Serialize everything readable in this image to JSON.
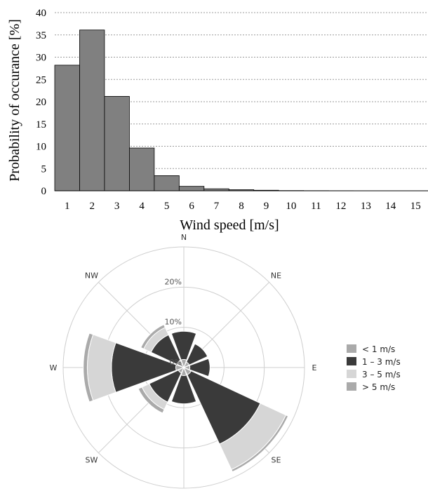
{
  "chart_data": [
    {
      "type": "bar",
      "title": "",
      "xlabel": "Wind speed [m/s]",
      "ylabel": "Probability of occurance [%]",
      "ylim": [
        0,
        40
      ],
      "yticks": [
        "0",
        "5",
        "10",
        "15",
        "20",
        "25",
        "30",
        "35",
        "40"
      ],
      "categories": [
        "1",
        "2",
        "3",
        "4",
        "5",
        "6",
        "7",
        "8",
        "9",
        "10",
        "11",
        "12",
        "13",
        "14",
        "15"
      ],
      "values": [
        28.2,
        36.1,
        21.2,
        9.6,
        3.4,
        1.0,
        0.45,
        0.25,
        0.12,
        0.05,
        0.03,
        0.02,
        0.01,
        0.01,
        0.0
      ],
      "grid": "horizontal dashed",
      "colors": {
        "bar": "#808080",
        "edge": "#000000"
      }
    },
    {
      "type": "wind-rose",
      "directions": [
        "N",
        "NE",
        "E",
        "SE",
        "S",
        "SW",
        "W",
        "NW"
      ],
      "radial_ticks": [
        "0%",
        "10%",
        "20%"
      ],
      "rlim": [
        0,
        30
      ],
      "legend_position": "right",
      "series": [
        {
          "name": "< 1 m/s",
          "color": "#aaaaaa",
          "values": [
            2,
            1.5,
            1.5,
            2,
            2,
            1.5,
            2,
            2
          ]
        },
        {
          "name": "1 – 3 m/s",
          "color": "#3a3a3a",
          "values": [
            7,
            5,
            5,
            19,
            7,
            8,
            16,
            7
          ]
        },
        {
          "name": "3 – 5 m/s",
          "color": "#d6d6d6",
          "values": [
            0,
            0,
            0,
            7,
            0,
            2,
            6,
            2
          ]
        },
        {
          "name": "> 5 m/s",
          "color": "#aaaaaa",
          "values": [
            0,
            0,
            0,
            0.6,
            0,
            1,
            1,
            0.8
          ]
        }
      ]
    }
  ]
}
